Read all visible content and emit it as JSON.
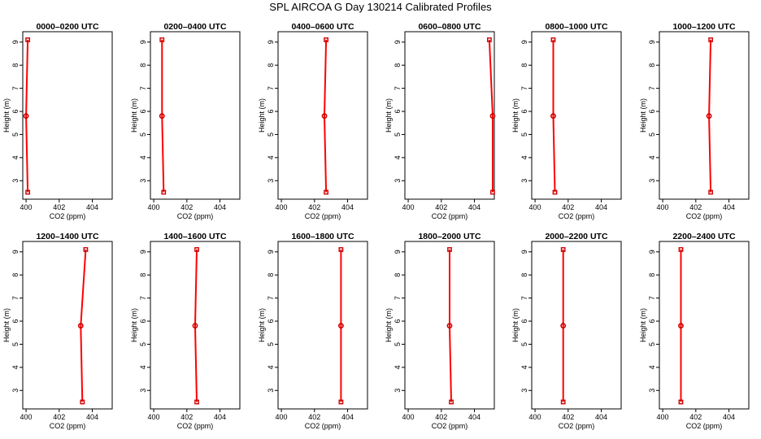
{
  "title": "SPL AIRCOA G  Day 130214  Calibrated Profiles",
  "chart_data": {
    "type": "line",
    "xlabel": "CO2 (ppm)",
    "ylabel": "Height (m)",
    "xlim": [
      399.8,
      405.2
    ],
    "ylim": [
      2.2,
      9.45
    ],
    "xticks": [
      400,
      402,
      404
    ],
    "yticks": [
      3,
      4,
      5,
      6,
      7,
      8,
      9
    ],
    "heights": [
      2.5,
      5.8,
      9.1
    ],
    "line_color": "#ff0000",
    "marker_color": "#cc0000",
    "panels": [
      {
        "title": "0000–0200 UTC",
        "co2": [
          400.1,
          400.0,
          400.1
        ]
      },
      {
        "title": "0200–0400 UTC",
        "co2": [
          400.6,
          400.5,
          400.5
        ]
      },
      {
        "title": "0400–0600 UTC",
        "co2": [
          402.7,
          402.6,
          402.7
        ]
      },
      {
        "title": "0600–0800 UTC",
        "co2": [
          405.1,
          405.1,
          404.9
        ]
      },
      {
        "title": "0800–1000 UTC",
        "co2": [
          401.2,
          401.1,
          401.1
        ]
      },
      {
        "title": "1000–1200 UTC",
        "co2": [
          402.9,
          402.8,
          402.9
        ]
      },
      {
        "title": "1200–1400 UTC",
        "co2": [
          403.4,
          403.3,
          403.6
        ]
      },
      {
        "title": "1400–1600 UTC",
        "co2": [
          402.6,
          402.5,
          402.6
        ]
      },
      {
        "title": "1600–1800 UTC",
        "co2": [
          403.6,
          403.6,
          403.6
        ]
      },
      {
        "title": "1800–2000 UTC",
        "co2": [
          402.6,
          402.5,
          402.5
        ]
      },
      {
        "title": "2000–2200 UTC",
        "co2": [
          401.7,
          401.7,
          401.7
        ]
      },
      {
        "title": "2200–2400 UTC",
        "co2": [
          401.1,
          401.1,
          401.1
        ]
      }
    ]
  }
}
